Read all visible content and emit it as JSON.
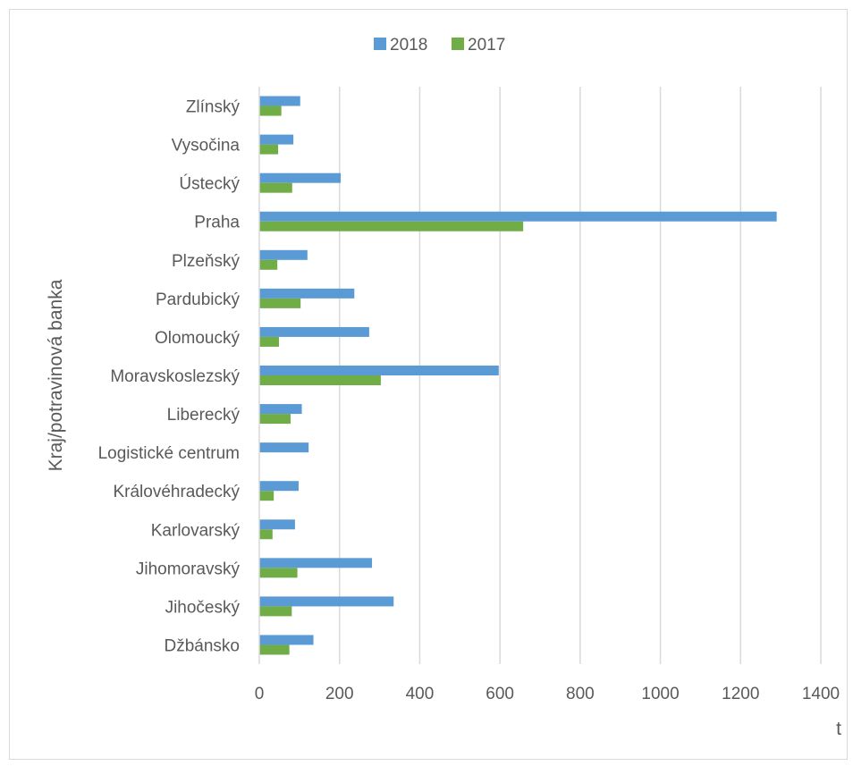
{
  "chart_data": {
    "type": "bar",
    "orientation": "horizontal",
    "categories": [
      "Zlínský",
      "Vysočina",
      "Ústecký",
      "Praha",
      "Plzeňský",
      "Pardubický",
      "Olomoucký",
      "Moravskoslezský",
      "Liberecký",
      "Logistické centrum",
      "Královéhradecký",
      "Karlovarský",
      "Jihomoravský",
      "Jihočeský",
      "Džbánsko"
    ],
    "series": [
      {
        "name": "2018",
        "color": "#5b9bd5",
        "values": [
          102,
          85,
          203,
          1290,
          120,
          237,
          274,
          597,
          106,
          123,
          98,
          89,
          281,
          335,
          135
        ]
      },
      {
        "name": "2017",
        "color": "#70ad47",
        "values": [
          55,
          47,
          82,
          658,
          45,
          103,
          49,
          303,
          78,
          0,
          36,
          33,
          95,
          81,
          75
        ]
      }
    ],
    "xlabel": "t",
    "ylabel": "Kraj/potravinová banka",
    "xlim": [
      0,
      1400
    ],
    "xticks": [
      0,
      200,
      400,
      600,
      800,
      1000,
      1200,
      1400
    ],
    "grid": true,
    "legend_position": "top-center"
  }
}
